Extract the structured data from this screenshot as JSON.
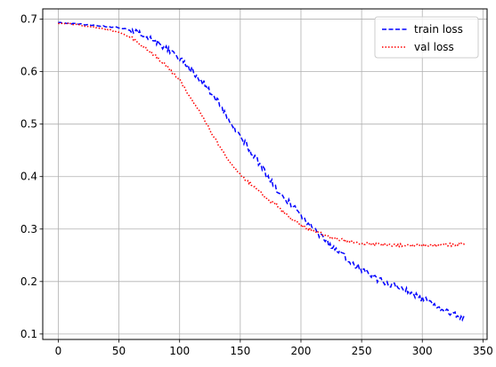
{
  "chart_data": {
    "type": "line",
    "title": "",
    "xlabel": "",
    "ylabel": "",
    "xlim": [
      -12.8,
      353.4
    ],
    "ylim": [
      0.0896,
      0.7196
    ],
    "xticks": [
      0,
      50,
      100,
      150,
      200,
      250,
      300,
      350
    ],
    "yticks": [
      0.1,
      0.2,
      0.3,
      0.4,
      0.5,
      0.6,
      0.7
    ],
    "xtick_labels": [
      "0",
      "50",
      "100",
      "150",
      "200",
      "250",
      "300",
      "350"
    ],
    "ytick_labels": [
      "0.1",
      "0.2",
      "0.3",
      "0.4",
      "0.5",
      "0.6",
      "0.7"
    ],
    "grid": true,
    "legend_position": "top-right",
    "series": [
      {
        "name": "train loss",
        "color": "#0000ff",
        "style": "dashed",
        "x": [
          0,
          10,
          20,
          30,
          40,
          50,
          60,
          70,
          80,
          90,
          100,
          110,
          120,
          130,
          140,
          150,
          160,
          170,
          180,
          190,
          200,
          210,
          220,
          230,
          240,
          250,
          260,
          270,
          280,
          290,
          300,
          310,
          320,
          330,
          335
        ],
        "y": [
          0.693,
          0.692,
          0.69,
          0.688,
          0.686,
          0.684,
          0.679,
          0.671,
          0.659,
          0.643,
          0.625,
          0.603,
          0.577,
          0.549,
          0.511,
          0.477,
          0.444,
          0.41,
          0.375,
          0.351,
          0.326,
          0.3,
          0.278,
          0.258,
          0.24,
          0.223,
          0.207,
          0.198,
          0.189,
          0.18,
          0.167,
          0.158,
          0.144,
          0.134,
          0.128
        ]
      },
      {
        "name": "val loss",
        "color": "#ff0000",
        "style": "dotted",
        "x": [
          0,
          10,
          20,
          30,
          40,
          50,
          60,
          70,
          80,
          90,
          100,
          110,
          120,
          130,
          140,
          150,
          160,
          170,
          180,
          190,
          200,
          210,
          220,
          230,
          240,
          250,
          260,
          270,
          280,
          290,
          300,
          310,
          320,
          330,
          335
        ],
        "y": [
          0.692,
          0.691,
          0.688,
          0.685,
          0.681,
          0.675,
          0.665,
          0.648,
          0.63,
          0.609,
          0.584,
          0.547,
          0.51,
          0.469,
          0.433,
          0.403,
          0.384,
          0.361,
          0.346,
          0.322,
          0.307,
          0.297,
          0.289,
          0.281,
          0.276,
          0.273,
          0.271,
          0.27,
          0.269,
          0.268,
          0.268,
          0.269,
          0.27,
          0.271,
          0.271
        ]
      }
    ]
  }
}
